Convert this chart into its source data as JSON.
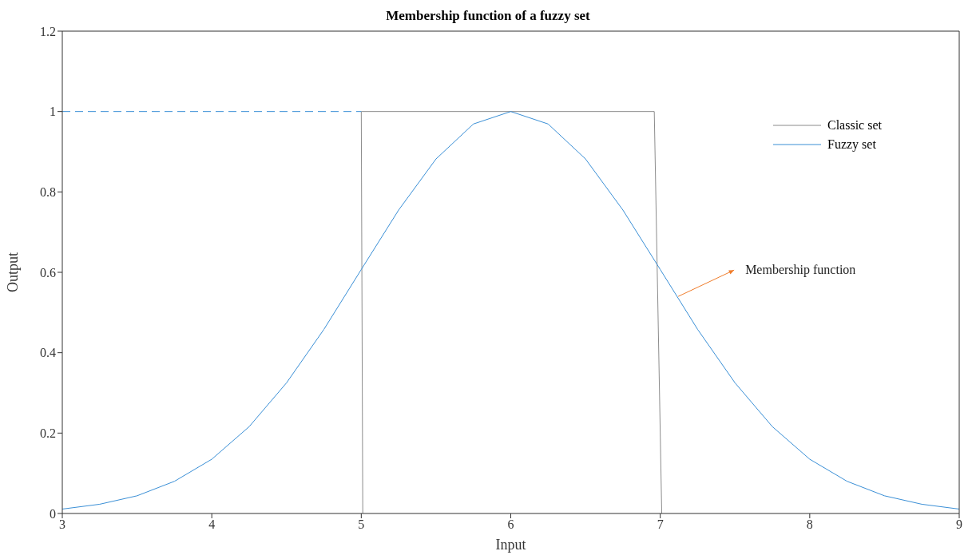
{
  "chart_data": {
    "type": "line",
    "title": "Membership function of a fuzzy set",
    "xlabel": "Input",
    "ylabel": "Output",
    "xlim": [
      3,
      9
    ],
    "xticks": [
      3,
      4,
      5,
      6,
      7,
      8,
      9
    ],
    "ylim": [
      0,
      1.2
    ],
    "yticks": [
      0,
      0.2,
      0.4,
      0.6,
      0.8,
      1,
      1.2
    ],
    "grid": false,
    "legend": "top right",
    "marker": "none",
    "series": [
      {
        "name": "Classic set",
        "color": "#8c8c8c",
        "line_style": "solid",
        "x": [
          5.01,
          5.0,
          6.96,
          7.01
        ],
        "values": [
          0,
          1,
          1,
          0
        ]
      },
      {
        "name": "Fuzzy set",
        "color": "#3a8fd6",
        "line_style": "solid",
        "x": [
          3,
          3.25,
          3.5,
          3.75,
          4,
          4.25,
          4.5,
          4.75,
          5,
          5.25,
          5.5,
          5.75,
          6,
          6.25,
          6.5,
          6.75,
          7,
          7.25,
          7.5,
          7.75,
          8,
          8.25,
          8.5,
          8.75,
          9
        ],
        "values": [
          0.011,
          0.023,
          0.044,
          0.08,
          0.135,
          0.216,
          0.325,
          0.458,
          0.607,
          0.755,
          0.882,
          0.969,
          1,
          0.969,
          0.882,
          0.755,
          0.607,
          0.458,
          0.325,
          0.216,
          0.135,
          0.08,
          0.044,
          0.023,
          0.011
        ]
      },
      {
        "color": "#3a8fd6",
        "line_style": "dashed",
        "x": [
          3,
          5
        ],
        "values": [
          1,
          1
        ]
      }
    ],
    "annotations": [
      {
        "text": "Membership function",
        "x": 7.12,
        "y": 0.54
      }
    ]
  }
}
